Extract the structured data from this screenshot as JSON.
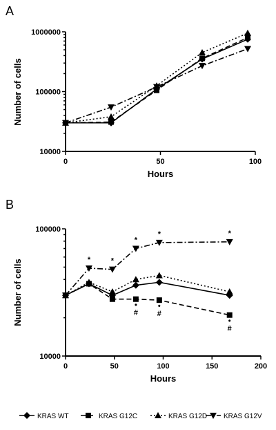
{
  "chart_data": [
    {
      "panel": "A",
      "type": "line",
      "xlabel": "Hours",
      "ylabel": "Number of cells",
      "xlim": [
        0,
        100
      ],
      "ylim": [
        10000,
        1000000
      ],
      "yscale": "log",
      "xticks": [
        "0",
        "50",
        "100"
      ],
      "yticks": [
        "10000",
        "100000",
        "1000000"
      ],
      "series": [
        {
          "name": "KRAS WT",
          "marker": "diamond",
          "dash": "solid",
          "x": [
            0,
            24,
            48,
            72,
            96
          ],
          "y": [
            30000,
            30000,
            110000,
            350000,
            750000
          ]
        },
        {
          "name": "KRAS G12C",
          "marker": "square",
          "dash": "dashed",
          "x": [
            0,
            24,
            48,
            72,
            96
          ],
          "y": [
            30000,
            31000,
            105000,
            360000,
            800000
          ]
        },
        {
          "name": "KRAS G12D",
          "marker": "triangle-up",
          "dash": "dotted",
          "x": [
            0,
            24,
            48,
            72,
            96
          ],
          "y": [
            30000,
            38000,
            125000,
            450000,
            950000
          ]
        },
        {
          "name": "KRAS G12V",
          "marker": "triangle-down",
          "dash": "dashdot",
          "x": [
            0,
            24,
            48,
            72,
            96
          ],
          "y": [
            30000,
            55000,
            120000,
            270000,
            520000
          ]
        }
      ]
    },
    {
      "panel": "B",
      "type": "line",
      "xlabel": "Hours",
      "ylabel": "Number of cells",
      "xlim": [
        0,
        200
      ],
      "ylim": [
        10000,
        100000
      ],
      "yscale": "log",
      "xticks": [
        "0",
        "50",
        "100",
        "150",
        "200"
      ],
      "yticks": [
        "10000",
        "100000"
      ],
      "series": [
        {
          "name": "KRAS WT",
          "marker": "diamond",
          "dash": "solid",
          "x": [
            0,
            24,
            48,
            72,
            96,
            168
          ],
          "y": [
            30000,
            37000,
            30000,
            36000,
            38000,
            30000
          ]
        },
        {
          "name": "KRAS G12C",
          "marker": "square",
          "dash": "dashed",
          "x": [
            0,
            24,
            48,
            72,
            96,
            168
          ],
          "y": [
            30000,
            37000,
            28000,
            28000,
            27500,
            21000
          ]
        },
        {
          "name": "KRAS G12D",
          "marker": "triangle-up",
          "dash": "dotted",
          "x": [
            0,
            24,
            48,
            72,
            96,
            168
          ],
          "y": [
            30000,
            38000,
            32000,
            40000,
            43000,
            32000
          ]
        },
        {
          "name": "KRAS G12V",
          "marker": "triangle-down",
          "dash": "dashdot",
          "x": [
            0,
            24,
            48,
            72,
            96,
            168
          ],
          "y": [
            30000,
            49000,
            48000,
            70000,
            78000,
            79000
          ]
        }
      ],
      "annotations": [
        {
          "text": "*",
          "x": 24,
          "y": 49000,
          "position": "above"
        },
        {
          "text": "*",
          "x": 48,
          "y": 48000,
          "position": "above"
        },
        {
          "text": "*",
          "x": 72,
          "y": 70000,
          "position": "above"
        },
        {
          "text": "*",
          "x": 96,
          "y": 78000,
          "position": "above"
        },
        {
          "text": "*",
          "x": 168,
          "y": 79000,
          "position": "above"
        },
        {
          "text": "•",
          "x": 72,
          "y": 28000,
          "position": "below"
        },
        {
          "text": "#",
          "x": 72,
          "y": 28000,
          "position": "below2"
        },
        {
          "text": "•",
          "x": 96,
          "y": 27500,
          "position": "below"
        },
        {
          "text": "#",
          "x": 96,
          "y": 27500,
          "position": "below2"
        },
        {
          "text": "•",
          "x": 168,
          "y": 21000,
          "position": "below"
        },
        {
          "text": "#",
          "x": 168,
          "y": 21000,
          "position": "below2"
        }
      ]
    }
  ],
  "legend": {
    "placement": "bottom",
    "items": [
      {
        "name": "KRAS WT",
        "marker": "diamond",
        "dash": "solid"
      },
      {
        "name": "KRAS G12C",
        "marker": "square",
        "dash": "dashed"
      },
      {
        "name": "KRAS G12D",
        "marker": "triangle-up",
        "dash": "dotted"
      },
      {
        "name": "KRAS G12V",
        "marker": "triangle-down",
        "dash": "dashdot"
      }
    ]
  }
}
